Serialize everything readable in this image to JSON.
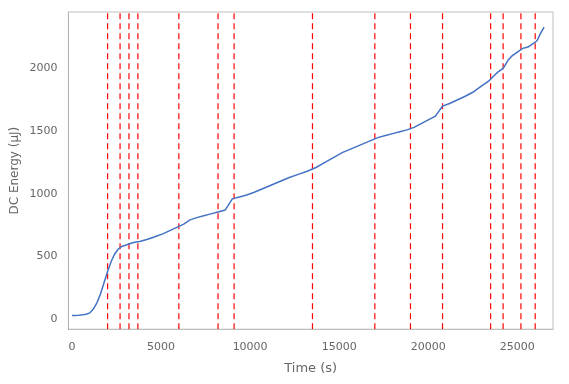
{
  "chart_data": {
    "type": "line",
    "xlabel": "Time (s)",
    "ylabel": "DC Energy (µJ)",
    "x": [
      0,
      200,
      400,
      600,
      800,
      1000,
      1200,
      1400,
      1600,
      1800,
      2000,
      2200,
      2400,
      2600,
      2800,
      3000,
      3200,
      3400,
      3600,
      3800,
      4000,
      4200,
      4500,
      4800,
      5100,
      5400,
      5700,
      6000,
      6300,
      6600,
      7000,
      7400,
      7800,
      8200,
      8600,
      9000,
      9400,
      9800,
      10200,
      10700,
      11200,
      11700,
      12200,
      12700,
      13200,
      13700,
      14200,
      14700,
      15200,
      15700,
      16200,
      16700,
      17200,
      17600,
      18000,
      18400,
      18800,
      19200,
      19600,
      20000,
      20400,
      20800,
      21200,
      21500,
      21800,
      22100,
      22500,
      22800,
      23100,
      23400,
      23600,
      23900,
      24200,
      24500,
      24700,
      25000,
      25300,
      25600,
      25900,
      26100,
      26300,
      26500
    ],
    "values": [
      30,
      30,
      32,
      35,
      40,
      50,
      80,
      130,
      200,
      290,
      380,
      460,
      520,
      560,
      580,
      590,
      600,
      610,
      615,
      620,
      628,
      635,
      650,
      665,
      680,
      700,
      720,
      740,
      760,
      790,
      810,
      825,
      840,
      855,
      870,
      960,
      975,
      990,
      1010,
      1040,
      1070,
      1100,
      1130,
      1155,
      1180,
      1210,
      1250,
      1290,
      1330,
      1360,
      1390,
      1420,
      1450,
      1465,
      1480,
      1495,
      1510,
      1530,
      1560,
      1590,
      1620,
      1700,
      1720,
      1740,
      1760,
      1780,
      1810,
      1840,
      1870,
      1900,
      1930,
      1970,
      2000,
      2070,
      2100,
      2130,
      2160,
      2170,
      2200,
      2220,
      2280,
      2330
    ],
    "color": "#4472c4",
    "vlines": {
      "x": [
        2000,
        2700,
        3200,
        3700,
        6000,
        8200,
        9100,
        13500,
        17000,
        19000,
        20800,
        23500,
        24200,
        25200,
        26000
      ],
      "color": "red",
      "line_style": "dashed"
    },
    "xlim": [
      -200,
      27000
    ],
    "ylim": [
      -80,
      2450
    ],
    "xticks": [
      0,
      5000,
      10000,
      15000,
      20000,
      25000
    ],
    "yticks": [
      0,
      500,
      1000,
      1500,
      2000
    ],
    "grid": false
  }
}
